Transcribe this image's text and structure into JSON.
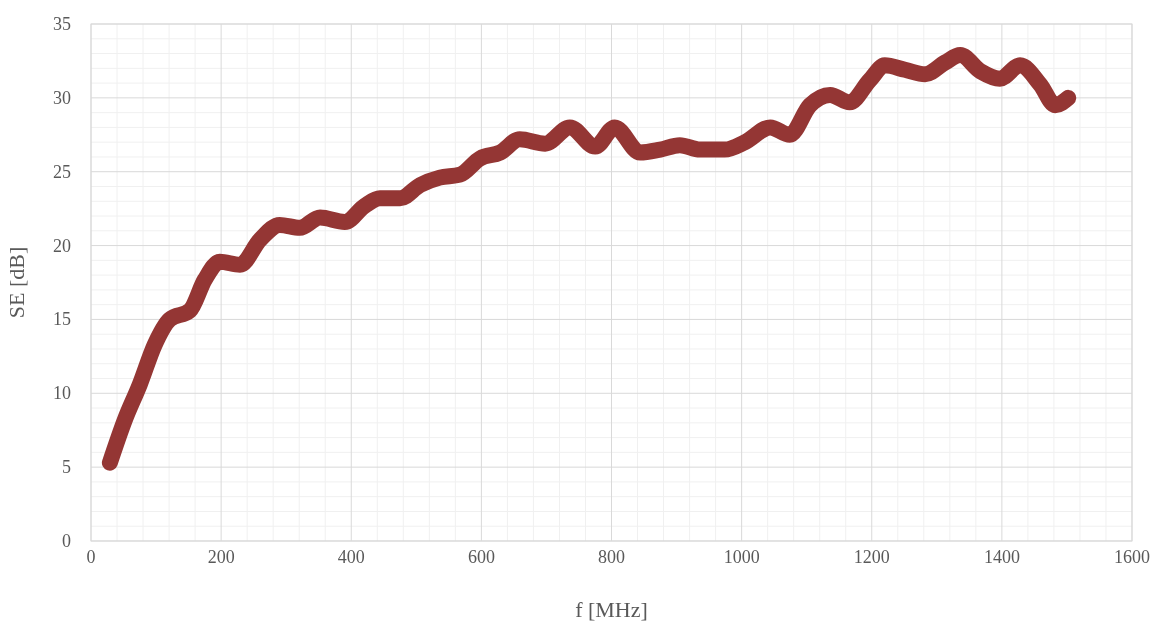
{
  "chart_data": {
    "type": "line",
    "xlabel": "f [MHz]",
    "ylabel": "SE [dB]",
    "xlim": [
      0,
      1600
    ],
    "ylim": [
      0,
      35
    ],
    "xticks": [
      0,
      200,
      400,
      600,
      800,
      1000,
      1200,
      1400,
      1600
    ],
    "yticks": [
      0,
      5,
      10,
      15,
      20,
      25,
      30,
      35
    ],
    "grid": true,
    "line_style": "solid",
    "series": [
      {
        "color": "#943634",
        "x": [
          29,
          52,
          75,
          98,
          121,
          152,
          175,
          198,
          229,
          260,
          290,
          321,
          352,
          390,
          421,
          444,
          475,
          506,
          536,
          567,
          598,
          629,
          659,
          698,
          736,
          775,
          805,
          844,
          875,
          905,
          936,
          974,
          1005,
          1044,
          1074,
          1105,
          1136,
          1166,
          1197,
          1220,
          1251,
          1282,
          1313,
          1336,
          1367,
          1397,
          1428,
          1459,
          1482,
          1502
        ],
        "values": [
          5.3,
          8.2,
          10.6,
          13.3,
          15.0,
          15.6,
          17.7,
          18.9,
          18.7,
          20.4,
          21.4,
          21.2,
          21.9,
          21.6,
          22.7,
          23.2,
          23.2,
          24.1,
          24.6,
          24.8,
          25.9,
          26.3,
          27.2,
          26.9,
          28.0,
          26.7,
          28.0,
          26.3,
          26.5,
          26.8,
          26.5,
          26.5,
          27.0,
          28.0,
          27.5,
          29.5,
          30.2,
          29.7,
          31.2,
          32.2,
          31.9,
          31.6,
          32.4,
          32.9,
          31.8,
          31.3,
          32.2,
          30.9,
          29.5,
          30.0
        ]
      }
    ]
  }
}
